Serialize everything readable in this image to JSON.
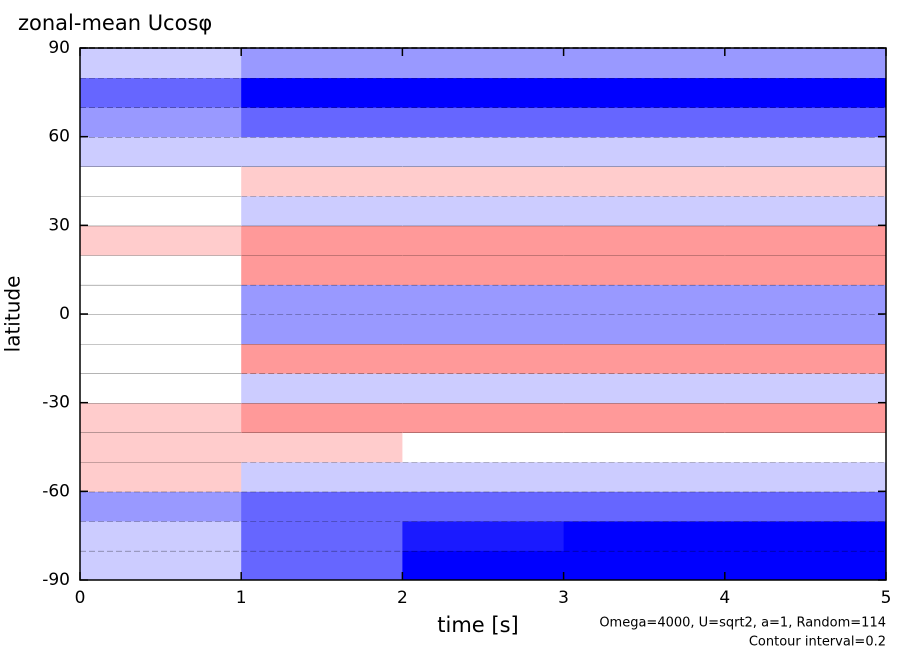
{
  "chart_data": {
    "type": "heatmap",
    "title": "zonal-mean Ucosφ",
    "xlabel": "time [s]",
    "ylabel": "latitude",
    "notes": [
      "Omega=4000, U=sqrt2, a=1, Random=114",
      "Contour interval=0.2"
    ],
    "xlim": [
      0,
      5
    ],
    "xticks": [
      0,
      1,
      2,
      3,
      4,
      5
    ],
    "ylim": [
      -90,
      90
    ],
    "yticks": [
      -90,
      -60,
      -30,
      0,
      30,
      60,
      90
    ],
    "xbins": [
      0,
      1,
      2,
      3,
      4,
      5
    ],
    "ybins": [
      -90,
      -80,
      -70,
      -60,
      -50,
      -40,
      -30,
      -20,
      -10,
      0,
      10,
      20,
      30,
      40,
      50,
      60,
      70,
      80,
      90
    ],
    "colors": {
      "negative": "#0000ff",
      "positive": "#ff0000"
    },
    "z": [
      [
        -0.2,
        -0.6,
        -1.0,
        -1.0,
        -1.0
      ],
      [
        -0.2,
        -0.6,
        -0.9,
        -1.0,
        -1.0
      ],
      [
        -0.4,
        -0.6,
        -0.6,
        -0.6,
        -0.6
      ],
      [
        0.2,
        -0.2,
        -0.2,
        -0.2,
        -0.2
      ],
      [
        0.2,
        0.2,
        0.0,
        0.0,
        0.0
      ],
      [
        0.2,
        0.4,
        0.4,
        0.4,
        0.4
      ],
      [
        0.0,
        -0.2,
        -0.2,
        -0.2,
        -0.2
      ],
      [
        0.0,
        0.4,
        0.4,
        0.4,
        0.4
      ],
      [
        0.0,
        -0.4,
        -0.4,
        -0.4,
        -0.4
      ],
      [
        0.0,
        -0.4,
        -0.4,
        -0.4,
        -0.4
      ],
      [
        0.0,
        0.4,
        0.4,
        0.4,
        0.4
      ],
      [
        0.2,
        0.4,
        0.4,
        0.4,
        0.4
      ],
      [
        0.0,
        -0.2,
        -0.2,
        -0.2,
        -0.2
      ],
      [
        0.0,
        0.2,
        0.2,
        0.2,
        0.2
      ],
      [
        -0.2,
        -0.2,
        -0.2,
        -0.2,
        -0.2
      ],
      [
        -0.4,
        -0.6,
        -0.6,
        -0.6,
        -0.6
      ],
      [
        -0.6,
        -1.0,
        -1.0,
        -1.0,
        -1.0
      ],
      [
        -0.2,
        -0.4,
        -0.4,
        -0.4,
        -0.4
      ]
    ]
  }
}
